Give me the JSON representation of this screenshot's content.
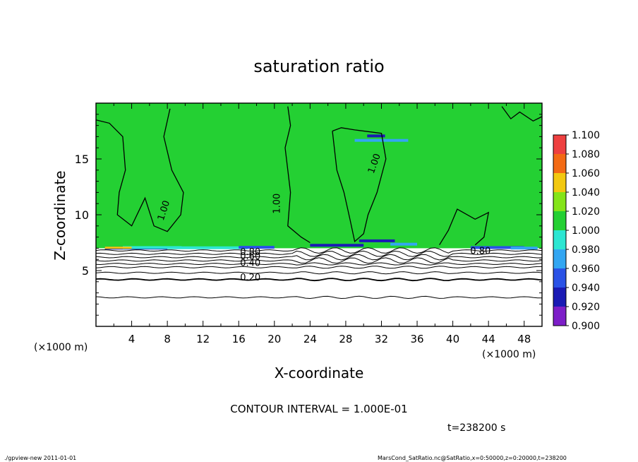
{
  "title": "saturation ratio",
  "footer": {
    "contour_interval": "CONTOUR INTERVAL = 1.000E-01",
    "time": "t=238200 s",
    "program": "./gpview-new   2011-01-01",
    "source": "MarsCond_SatRatio.nc@SatRatio,x=0:50000,z=0:20000,t=238200"
  },
  "chart_data": {
    "type": "heatmap",
    "title": "saturation ratio",
    "xlabel": "X-coordinate",
    "ylabel": "Z-coordinate",
    "x_unit": "(×1000 m)",
    "y_unit": "(×1000 m)",
    "xlim": [
      0,
      50
    ],
    "ylim": [
      0,
      20
    ],
    "x_ticks": [
      4,
      8,
      12,
      16,
      20,
      24,
      28,
      32,
      36,
      40,
      44,
      48
    ],
    "y_ticks": [
      5,
      10,
      15
    ],
    "colorbar": {
      "levels": [
        0.9,
        0.92,
        0.94,
        0.96,
        0.98,
        1.0,
        1.02,
        1.04,
        1.06,
        1.08,
        1.1
      ],
      "labels": [
        "0.900",
        "0.920",
        "0.940",
        "0.960",
        "0.980",
        "1.000",
        "1.020",
        "1.040",
        "1.060",
        "1.080",
        "1.100"
      ],
      "colors": [
        "#7d1ec8",
        "#1a1ab4",
        "#2a52e6",
        "#33a6f2",
        "#2ce6d2",
        "#24d033",
        "#84e419",
        "#f2c810",
        "#f36a14",
        "#ee4040"
      ]
    },
    "contour_interval": 0.1,
    "contour_labels": [
      {
        "text": "1.00",
        "x": 7.9,
        "z": 10.3,
        "angle": -72
      },
      {
        "text": "1.00",
        "x": 20.6,
        "z": 11.0,
        "angle": -90
      },
      {
        "text": "1.00",
        "x": 31.5,
        "z": 14.5,
        "angle": -70
      },
      {
        "text": "0.80",
        "x": 17.3,
        "z": 6.4,
        "angle": 0
      },
      {
        "text": "0.60",
        "x": 17.3,
        "z": 6.0,
        "angle": 0
      },
      {
        "text": "0.40",
        "x": 17.3,
        "z": 5.4,
        "angle": 0
      },
      {
        "text": "0.20",
        "x": 17.3,
        "z": 4.1,
        "angle": 0
      },
      {
        "text": "0.80",
        "x": 43.1,
        "z": 6.5,
        "angle": 0
      }
    ],
    "saturated_region": {
      "value": 1.0,
      "z_bottom": 7.0,
      "z_top": 20.0
    },
    "dry_levels": [
      {
        "value": 0.9,
        "z": 6.8
      },
      {
        "value": 0.8,
        "z": 6.5
      },
      {
        "value": 0.7,
        "z": 6.2
      },
      {
        "value": 0.6,
        "z": 5.9
      },
      {
        "value": 0.5,
        "z": 5.6
      },
      {
        "value": 0.4,
        "z": 5.3
      },
      {
        "value": 0.3,
        "z": 4.8
      },
      {
        "value": 0.2,
        "z": 4.2
      },
      {
        "value": 0.1,
        "z": 2.6
      }
    ]
  }
}
